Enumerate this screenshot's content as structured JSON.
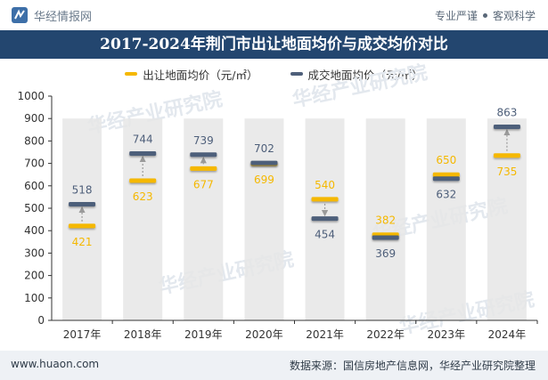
{
  "header": {
    "brand": "华经情报网",
    "tagline_left": "专业严谨",
    "tagline_right": "客观科学"
  },
  "footer": {
    "website": "www.huaon.com",
    "source": "数据来源：国信房地产信息网，华经产业研究院整理"
  },
  "watermark": "华经产业研究院",
  "colors": {
    "title_bg": "#23466f",
    "listing_series": "#f5b800",
    "deal_series": "#4e5f7a",
    "column_bg": "#e6e6e6"
  },
  "chart_data": {
    "type": "line",
    "title": "2017-2024年荆门市出让地面均价与成交均价对比",
    "categories": [
      "2017年",
      "2018年",
      "2019年",
      "2020年",
      "2021年",
      "2022年",
      "2023年",
      "2024年"
    ],
    "series": [
      {
        "name": "出让地面均价（元/㎡）",
        "values": [
          421,
          623,
          677,
          699,
          540,
          382,
          650,
          735
        ],
        "color": "#f5b800"
      },
      {
        "name": "成交地面均价（元/㎡）",
        "values": [
          518,
          744,
          739,
          702,
          454,
          369,
          632,
          863
        ],
        "color": "#4e5f7a"
      }
    ],
    "ylim": [
      0,
      1000
    ],
    "yticks": [
      "0",
      "100",
      "200",
      "300",
      "400",
      "500",
      "600",
      "700",
      "800",
      "900",
      "1000"
    ],
    "grid": false,
    "legend_position": "top-center"
  }
}
